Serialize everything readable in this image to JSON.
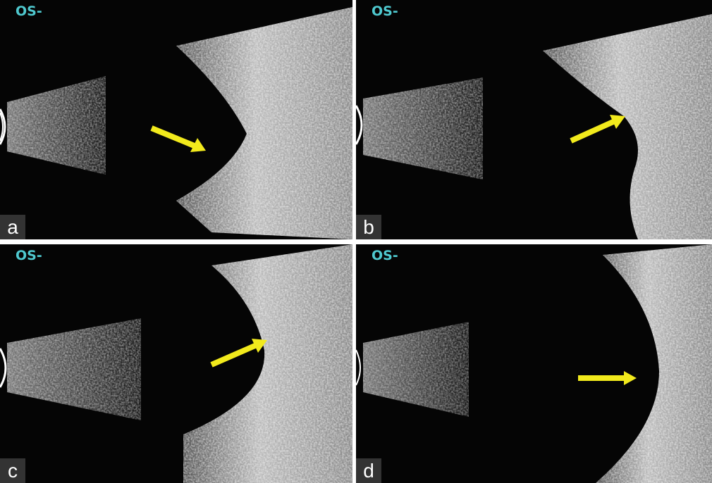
{
  "panels": [
    {
      "label": "a",
      "eye": "OS-"
    },
    {
      "label": "b",
      "eye": "OS-"
    },
    {
      "label": "c",
      "eye": "OS-"
    },
    {
      "label": "d",
      "eye": "OS-"
    }
  ]
}
